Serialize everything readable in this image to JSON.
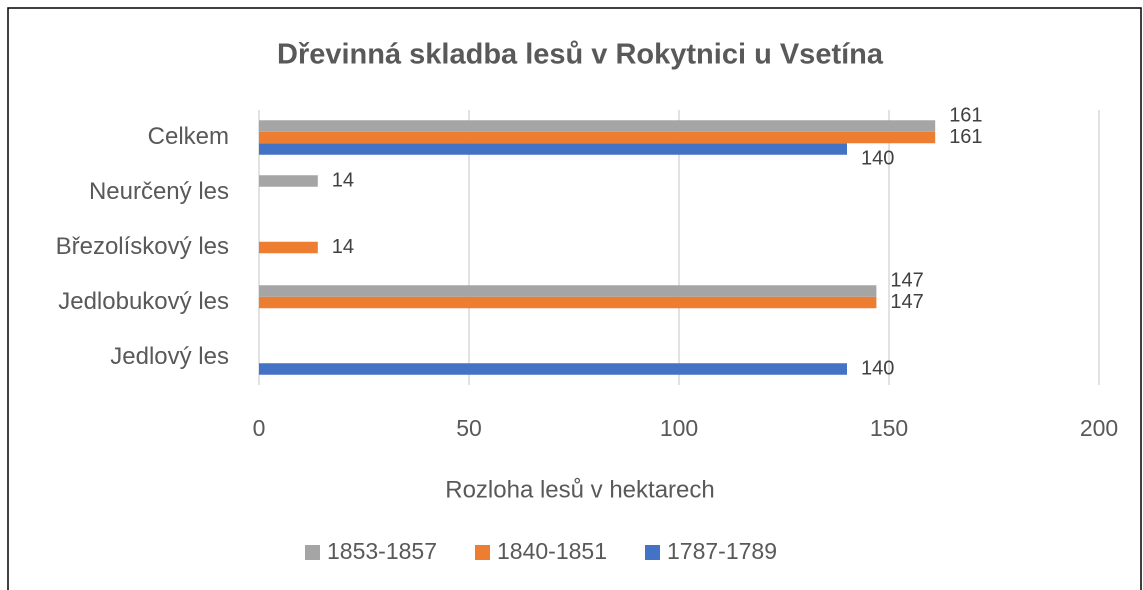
{
  "chart_data": {
    "type": "bar",
    "orientation": "horizontal",
    "title": "Dřevinná skladba lesů v Rokytnici u Vsetína",
    "x_label": "Rozloha lesů v hektarech",
    "categories": [
      "Jedlový les",
      "Jedlobukový les",
      "Březolískový les",
      "Neurčený les",
      "Celkem"
    ],
    "series": [
      {
        "name": "1787-1789",
        "color": "#4472c4",
        "values": [
          140,
          null,
          null,
          null,
          140
        ]
      },
      {
        "name": "1840-1851",
        "color": "#ed7d31",
        "values": [
          null,
          147,
          14,
          null,
          161
        ]
      },
      {
        "name": "1853-1857",
        "color": "#a5a5a5",
        "values": [
          null,
          147,
          null,
          14,
          161
        ]
      }
    ],
    "xlim": [
      0,
      200
    ],
    "xticks": [
      0,
      50,
      100,
      150,
      200
    ],
    "grid": true,
    "legend": "bottom"
  }
}
